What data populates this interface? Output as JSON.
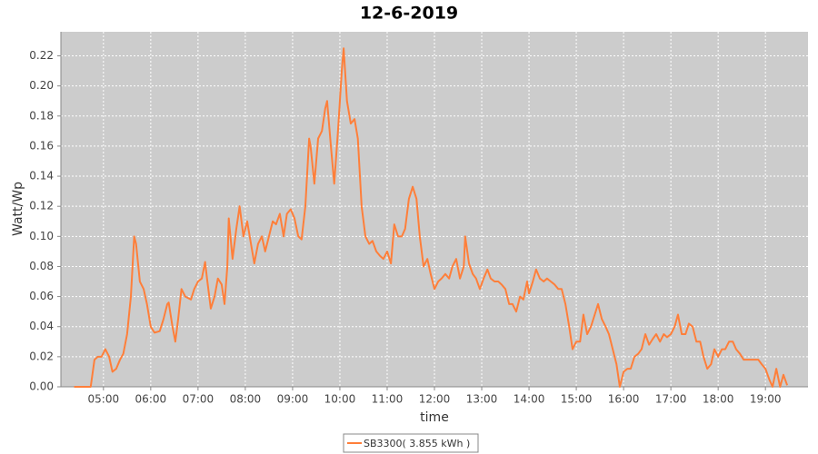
{
  "chart_data": {
    "type": "line",
    "title": "12-6-2019",
    "xlabel": "time",
    "ylabel": "Watt/Wp",
    "x": [
      4.38,
      4.73,
      4.81,
      4.88,
      4.96,
      5.04,
      5.12,
      5.19,
      5.27,
      5.35,
      5.42,
      5.5,
      5.58,
      5.65,
      5.69,
      5.77,
      5.85,
      5.92,
      6.0,
      6.08,
      6.19,
      6.27,
      6.35,
      6.38,
      6.46,
      6.52,
      6.58,
      6.65,
      6.73,
      6.85,
      6.92,
      7.0,
      7.08,
      7.15,
      7.19,
      7.27,
      7.35,
      7.42,
      7.5,
      7.56,
      7.62,
      7.65,
      7.73,
      7.81,
      7.88,
      7.96,
      8.04,
      8.12,
      8.19,
      8.27,
      8.35,
      8.42,
      8.5,
      8.58,
      8.65,
      8.73,
      8.81,
      8.88,
      8.96,
      9.04,
      9.12,
      9.19,
      9.27,
      9.35,
      9.38,
      9.46,
      9.54,
      9.62,
      9.69,
      9.73,
      9.81,
      9.88,
      9.96,
      10.04,
      10.08,
      10.15,
      10.23,
      10.31,
      10.38,
      10.46,
      10.54,
      10.62,
      10.69,
      10.77,
      10.85,
      10.92,
      11.0,
      11.08,
      11.15,
      11.23,
      11.31,
      11.38,
      11.46,
      11.54,
      11.62,
      11.69,
      11.77,
      11.85,
      11.92,
      12.0,
      12.08,
      12.15,
      12.23,
      12.31,
      12.38,
      12.46,
      12.54,
      12.62,
      12.65,
      12.73,
      12.81,
      12.88,
      12.96,
      13.04,
      13.12,
      13.19,
      13.27,
      13.35,
      13.42,
      13.5,
      13.58,
      13.65,
      13.73,
      13.81,
      13.88,
      13.96,
      14.0,
      14.08,
      14.15,
      14.23,
      14.31,
      14.38,
      14.46,
      14.54,
      14.62,
      14.69,
      14.77,
      14.85,
      14.92,
      15.0,
      15.08,
      15.15,
      15.23,
      15.31,
      15.38,
      15.46,
      15.54,
      15.62,
      15.69,
      15.77,
      15.85,
      15.92,
      16.0,
      16.08,
      16.15,
      16.23,
      16.31,
      16.38,
      16.46,
      16.54,
      16.62,
      16.69,
      16.77,
      16.85,
      16.92,
      17.0,
      17.08,
      17.15,
      17.23,
      17.31,
      17.38,
      17.46,
      17.54,
      17.62,
      17.69,
      17.77,
      17.85,
      17.92,
      18.0,
      18.08,
      18.15,
      18.23,
      18.31,
      18.38,
      18.46,
      18.54,
      18.62,
      18.69,
      18.77,
      18.85,
      18.92,
      19.0,
      19.08,
      19.15,
      19.23,
      19.31,
      19.38,
      19.46
    ],
    "series": [
      {
        "name": "SB3300( 3.855 kWh )",
        "color": "#ff7f3a",
        "values": [
          0,
          0,
          0.018,
          0.02,
          0.02,
          0.025,
          0.02,
          0.01,
          0.012,
          0.018,
          0.022,
          0.035,
          0.06,
          0.1,
          0.095,
          0.07,
          0.065,
          0.055,
          0.04,
          0.036,
          0.037,
          0.045,
          0.055,
          0.056,
          0.04,
          0.03,
          0.045,
          0.065,
          0.06,
          0.058,
          0.065,
          0.07,
          0.072,
          0.083,
          0.072,
          0.052,
          0.06,
          0.072,
          0.068,
          0.055,
          0.08,
          0.112,
          0.085,
          0.105,
          0.12,
          0.1,
          0.11,
          0.095,
          0.082,
          0.095,
          0.1,
          0.09,
          0.1,
          0.11,
          0.108,
          0.115,
          0.1,
          0.115,
          0.118,
          0.112,
          0.1,
          0.098,
          0.12,
          0.165,
          0.16,
          0.135,
          0.165,
          0.17,
          0.185,
          0.19,
          0.16,
          0.135,
          0.17,
          0.21,
          0.225,
          0.19,
          0.175,
          0.178,
          0.165,
          0.12,
          0.1,
          0.095,
          0.097,
          0.09,
          0.087,
          0.085,
          0.09,
          0.082,
          0.108,
          0.1,
          0.1,
          0.105,
          0.125,
          0.133,
          0.125,
          0.1,
          0.08,
          0.085,
          0.075,
          0.065,
          0.07,
          0.072,
          0.075,
          0.072,
          0.08,
          0.085,
          0.072,
          0.08,
          0.1,
          0.082,
          0.075,
          0.072,
          0.065,
          0.072,
          0.078,
          0.072,
          0.07,
          0.07,
          0.068,
          0.065,
          0.055,
          0.055,
          0.05,
          0.06,
          0.058,
          0.07,
          0.062,
          0.07,
          0.078,
          0.072,
          0.07,
          0.072,
          0.07,
          0.068,
          0.065,
          0.065,
          0.055,
          0.04,
          0.025,
          0.03,
          0.03,
          0.048,
          0.035,
          0.04,
          0.047,
          0.055,
          0.045,
          0.04,
          0.035,
          0.025,
          0.015,
          0,
          0.01,
          0.012,
          0.012,
          0.02,
          0.022,
          0.025,
          0.035,
          0.028,
          0.032,
          0.035,
          0.03,
          0.035,
          0.033,
          0.035,
          0.04,
          0.048,
          0.035,
          0.035,
          0.042,
          0.04,
          0.03,
          0.03,
          0.02,
          0.012,
          0.015,
          0.025,
          0.02,
          0.025,
          0.025,
          0.03,
          0.03,
          0.025,
          0.022,
          0.018,
          0.018,
          0.018,
          0.018,
          0.018,
          0.015,
          0.012,
          0.005,
          0,
          0.012,
          0,
          0.008,
          0.001
        ]
      }
    ],
    "xlim": [
      4.1,
      19.9
    ],
    "xticks": [
      {
        "value": 5,
        "label": "05:00"
      },
      {
        "value": 6,
        "label": "06:00"
      },
      {
        "value": 7,
        "label": "07:00"
      },
      {
        "value": 8,
        "label": "08:00"
      },
      {
        "value": 9,
        "label": "09:00"
      },
      {
        "value": 10,
        "label": "10:00"
      },
      {
        "value": 11,
        "label": "11:00"
      },
      {
        "value": 12,
        "label": "12:00"
      },
      {
        "value": 13,
        "label": "13:00"
      },
      {
        "value": 14,
        "label": "14:00"
      },
      {
        "value": 15,
        "label": "15:00"
      },
      {
        "value": 16,
        "label": "16:00"
      },
      {
        "value": 17,
        "label": "17:00"
      },
      {
        "value": 18,
        "label": "18:00"
      },
      {
        "value": 19,
        "label": "19:00"
      }
    ],
    "ylim": [
      0,
      0.236
    ],
    "yticks": [
      {
        "value": 0,
        "label": "0.00"
      },
      {
        "value": 0.02,
        "label": "0.02"
      },
      {
        "value": 0.04,
        "label": "0.04"
      },
      {
        "value": 0.06,
        "label": "0.06"
      },
      {
        "value": 0.08,
        "label": "0.08"
      },
      {
        "value": 0.1,
        "label": "0.10"
      },
      {
        "value": 0.12,
        "label": "0.12"
      },
      {
        "value": 0.14,
        "label": "0.14"
      },
      {
        "value": 0.16,
        "label": "0.16"
      },
      {
        "value": 0.18,
        "label": "0.18"
      },
      {
        "value": 0.2,
        "label": "0.20"
      },
      {
        "value": 0.22,
        "label": "0.22"
      }
    ],
    "grid": true,
    "legend": "bottom"
  }
}
